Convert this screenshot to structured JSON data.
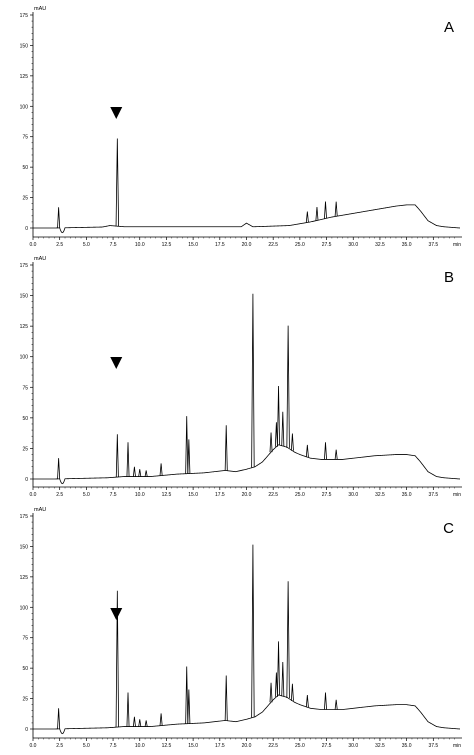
{
  "chart_data": [
    {
      "type": "line",
      "panel_letter": "A",
      "ylabel": "mAU",
      "xlabel": "min",
      "xlim": [
        0,
        40
      ],
      "ylim": [
        0,
        175
      ],
      "x_ticks": [
        "0.0",
        "2.5",
        "5.0",
        "7.5",
        "10.0",
        "12.5",
        "15.0",
        "17.5",
        "20.0",
        "22.5",
        "25.0",
        "27.5",
        "30.0",
        "32.5",
        "35.0",
        "37.5"
      ],
      "y_ticks": [
        "0",
        "25",
        "50",
        "75",
        "100",
        "125",
        "150",
        "175"
      ],
      "marker": {
        "symbol": "▼",
        "x": 7.8
      },
      "peaks": [
        {
          "x": 2.4,
          "height": 17
        },
        {
          "x": 7.9,
          "height": 72
        },
        {
          "x": 25.7,
          "height": 9
        },
        {
          "x": 26.6,
          "height": 11
        },
        {
          "x": 27.4,
          "height": 14
        },
        {
          "x": 28.4,
          "height": 12
        }
      ],
      "baseline": [
        [
          0,
          0
        ],
        [
          2.0,
          0
        ],
        [
          6.5,
          0.8
        ],
        [
          7.2,
          2
        ],
        [
          8.6,
          1
        ],
        [
          12.0,
          1
        ],
        [
          19.5,
          1
        ],
        [
          20.0,
          4
        ],
        [
          20.6,
          1
        ],
        [
          24.0,
          2
        ],
        [
          26.0,
          5
        ],
        [
          28.0,
          9
        ],
        [
          30.0,
          12
        ],
        [
          32.0,
          15
        ],
        [
          34.0,
          18
        ],
        [
          35.0,
          19
        ],
        [
          35.8,
          19
        ],
        [
          36.3,
          14
        ],
        [
          37.0,
          6
        ],
        [
          37.8,
          2
        ],
        [
          38.5,
          1
        ],
        [
          40,
          0
        ]
      ]
    },
    {
      "type": "line",
      "panel_letter": "B",
      "ylabel": "mAU",
      "xlabel": "min",
      "xlim": [
        0,
        40
      ],
      "ylim": [
        0,
        175
      ],
      "x_ticks": [
        "0.0",
        "2.5",
        "5.0",
        "7.5",
        "10.0",
        "12.5",
        "15.0",
        "17.5",
        "20.0",
        "22.5",
        "25.0",
        "27.5",
        "30.0",
        "32.5",
        "35.0",
        "37.5"
      ],
      "y_ticks": [
        "0",
        "25",
        "50",
        "75",
        "100",
        "125",
        "150",
        "175"
      ],
      "marker": {
        "symbol": "▼",
        "x": 7.8
      },
      "peaks": [
        {
          "x": 2.4,
          "height": 17
        },
        {
          "x": 7.9,
          "height": 35
        },
        {
          "x": 8.9,
          "height": 28
        },
        {
          "x": 9.5,
          "height": 8
        },
        {
          "x": 10.0,
          "height": 6
        },
        {
          "x": 10.6,
          "height": 5
        },
        {
          "x": 12.0,
          "height": 10
        },
        {
          "x": 14.4,
          "height": 47
        },
        {
          "x": 14.6,
          "height": 28
        },
        {
          "x": 18.1,
          "height": 37
        },
        {
          "x": 20.6,
          "height": 142
        },
        {
          "x": 22.3,
          "height": 16
        },
        {
          "x": 22.8,
          "height": 20
        },
        {
          "x": 23.0,
          "height": 48
        },
        {
          "x": 23.4,
          "height": 28
        },
        {
          "x": 23.9,
          "height": 100
        },
        {
          "x": 24.3,
          "height": 14
        },
        {
          "x": 25.7,
          "height": 10
        },
        {
          "x": 27.4,
          "height": 14
        },
        {
          "x": 28.4,
          "height": 8
        }
      ],
      "baseline": [
        [
          0,
          0
        ],
        [
          2.0,
          0
        ],
        [
          7.0,
          1
        ],
        [
          8.5,
          2
        ],
        [
          11.0,
          2
        ],
        [
          13.5,
          4
        ],
        [
          16.0,
          5
        ],
        [
          18.0,
          7
        ],
        [
          19.0,
          6
        ],
        [
          20.0,
          8
        ],
        [
          20.8,
          10
        ],
        [
          21.5,
          14
        ],
        [
          22.5,
          24
        ],
        [
          23.0,
          28
        ],
        [
          23.8,
          26
        ],
        [
          24.5,
          22
        ],
        [
          25.0,
          20
        ],
        [
          26.0,
          17
        ],
        [
          27.0,
          16
        ],
        [
          28.0,
          16
        ],
        [
          29.0,
          16
        ],
        [
          30.0,
          17
        ],
        [
          32.0,
          19
        ],
        [
          34.0,
          20
        ],
        [
          35.0,
          20
        ],
        [
          35.8,
          19
        ],
        [
          36.3,
          14
        ],
        [
          37.0,
          6
        ],
        [
          37.8,
          2
        ],
        [
          38.5,
          1
        ],
        [
          40,
          0
        ]
      ]
    },
    {
      "type": "line",
      "panel_letter": "C",
      "ylabel": "mAU",
      "xlabel": "min",
      "xlim": [
        0,
        40
      ],
      "ylim": [
        0,
        175
      ],
      "x_ticks": [
        "0.0",
        "2.5",
        "5.0",
        "7.5",
        "10.0",
        "12.5",
        "15.0",
        "17.5",
        "20.0",
        "22.5",
        "25.0",
        "27.5",
        "30.0",
        "32.5",
        "35.0",
        "37.5"
      ],
      "y_ticks": [
        "0",
        "25",
        "50",
        "75",
        "100",
        "125",
        "150",
        "175"
      ],
      "marker": {
        "symbol": "▼",
        "x": 7.8
      },
      "peaks": [
        {
          "x": 2.4,
          "height": 17
        },
        {
          "x": 7.9,
          "height": 112
        },
        {
          "x": 8.9,
          "height": 28
        },
        {
          "x": 9.5,
          "height": 8
        },
        {
          "x": 10.0,
          "height": 6
        },
        {
          "x": 10.6,
          "height": 5
        },
        {
          "x": 12.0,
          "height": 10
        },
        {
          "x": 14.4,
          "height": 47
        },
        {
          "x": 14.6,
          "height": 28
        },
        {
          "x": 18.1,
          "height": 37
        },
        {
          "x": 20.6,
          "height": 142
        },
        {
          "x": 22.3,
          "height": 16
        },
        {
          "x": 22.8,
          "height": 20
        },
        {
          "x": 23.0,
          "height": 44
        },
        {
          "x": 23.4,
          "height": 28
        },
        {
          "x": 23.9,
          "height": 96
        },
        {
          "x": 24.3,
          "height": 14
        },
        {
          "x": 25.7,
          "height": 10
        },
        {
          "x": 27.4,
          "height": 14
        },
        {
          "x": 28.4,
          "height": 8
        }
      ],
      "baseline": [
        [
          0,
          0
        ],
        [
          2.0,
          0
        ],
        [
          7.0,
          1
        ],
        [
          8.5,
          2
        ],
        [
          11.0,
          2
        ],
        [
          13.5,
          4
        ],
        [
          16.0,
          5
        ],
        [
          18.0,
          7
        ],
        [
          19.0,
          6
        ],
        [
          20.0,
          8
        ],
        [
          20.8,
          10
        ],
        [
          21.5,
          14
        ],
        [
          22.5,
          24
        ],
        [
          23.0,
          28
        ],
        [
          23.8,
          26
        ],
        [
          24.5,
          22
        ],
        [
          25.0,
          20
        ],
        [
          26.0,
          17
        ],
        [
          27.0,
          16
        ],
        [
          28.0,
          16
        ],
        [
          29.0,
          16
        ],
        [
          30.0,
          17
        ],
        [
          32.0,
          19
        ],
        [
          34.0,
          20
        ],
        [
          35.0,
          20
        ],
        [
          35.8,
          19
        ],
        [
          36.3,
          14
        ],
        [
          37.0,
          6
        ],
        [
          37.8,
          2
        ],
        [
          38.5,
          1
        ],
        [
          40,
          0
        ]
      ]
    }
  ],
  "colors": {
    "trace": "#000000",
    "axis": "#000000",
    "text": "#000000"
  }
}
